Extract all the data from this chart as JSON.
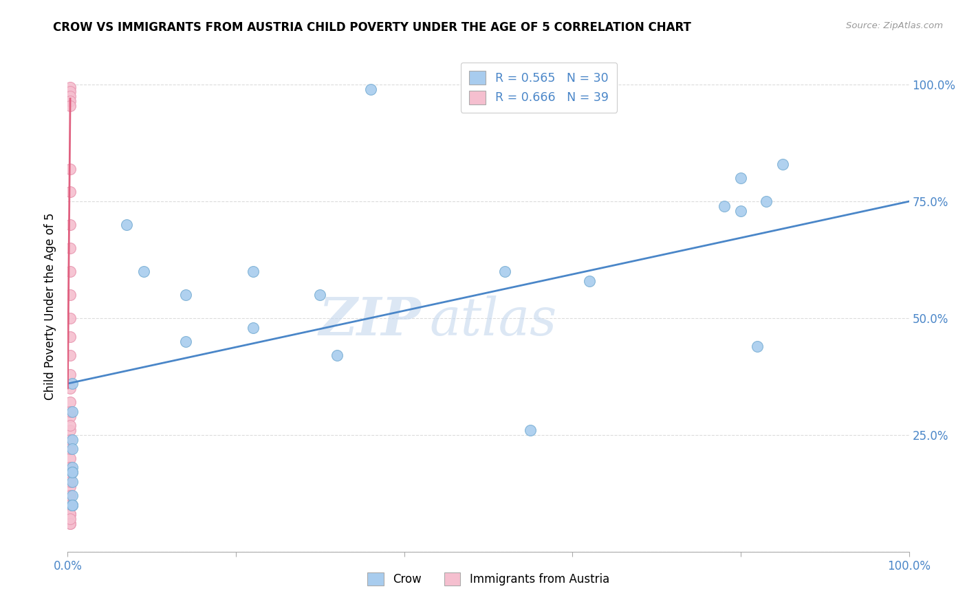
{
  "title": "CROW VS IMMIGRANTS FROM AUSTRIA CHILD POVERTY UNDER THE AGE OF 5 CORRELATION CHART",
  "source": "Source: ZipAtlas.com",
  "ylabel_label": "Child Poverty Under the Age of 5",
  "xlim": [
    0.0,
    1.0
  ],
  "ylim": [
    0.0,
    1.05
  ],
  "xtick_pos": [
    0.0,
    0.2,
    0.4,
    0.6,
    0.8,
    1.0
  ],
  "xticklabels": [
    "0.0%",
    "",
    "",
    "",
    "",
    "100.0%"
  ],
  "ytick_pos": [
    0.0,
    0.25,
    0.5,
    0.75,
    1.0
  ],
  "yticklabels_right": [
    "",
    "25.0%",
    "50.0%",
    "75.0%",
    "100.0%"
  ],
  "grid_color": "#cccccc",
  "background_color": "#ffffff",
  "crow_color": "#a8ccee",
  "crow_edge_color": "#7aafd4",
  "austria_color": "#f5bfcf",
  "austria_edge_color": "#e896b0",
  "crow_line_color": "#4a86c8",
  "austria_line_color": "#e06080",
  "crow_R": 0.565,
  "crow_N": 30,
  "austria_R": 0.666,
  "austria_N": 39,
  "legend_text_color": "#4a86c8",
  "watermark": "ZIPatlas",
  "crow_points_x": [
    0.005,
    0.07,
    0.09,
    0.14,
    0.14,
    0.22,
    0.22,
    0.3,
    0.32,
    0.36,
    0.52,
    0.55,
    0.62,
    0.78,
    0.8,
    0.8,
    0.82,
    0.83,
    0.85,
    0.005,
    0.005,
    0.005,
    0.005,
    0.005,
    0.005,
    0.005,
    0.005,
    0.005,
    0.005,
    0.005
  ],
  "crow_points_y": [
    0.36,
    0.7,
    0.6,
    0.55,
    0.45,
    0.6,
    0.48,
    0.55,
    0.42,
    0.99,
    0.6,
    0.26,
    0.58,
    0.74,
    0.8,
    0.73,
    0.44,
    0.75,
    0.83,
    0.3,
    0.24,
    0.22,
    0.18,
    0.15,
    0.12,
    0.1,
    0.17,
    0.17,
    0.1,
    0.1
  ],
  "austria_points_x": [
    0.003,
    0.003,
    0.003,
    0.003,
    0.003,
    0.003,
    0.003,
    0.003,
    0.003,
    0.003,
    0.003,
    0.003,
    0.003,
    0.003,
    0.003,
    0.003,
    0.003,
    0.003,
    0.003,
    0.003,
    0.003,
    0.003,
    0.003,
    0.003,
    0.003,
    0.003,
    0.003,
    0.003,
    0.003,
    0.003,
    0.003,
    0.003,
    0.003,
    0.003,
    0.003,
    0.003,
    0.003,
    0.003,
    0.003
  ],
  "austria_points_y": [
    0.995,
    0.985,
    0.975,
    0.965,
    0.955,
    0.82,
    0.77,
    0.7,
    0.65,
    0.6,
    0.55,
    0.5,
    0.46,
    0.42,
    0.38,
    0.35,
    0.32,
    0.29,
    0.26,
    0.24,
    0.22,
    0.2,
    0.18,
    0.16,
    0.14,
    0.12,
    0.1,
    0.08,
    0.3,
    0.27,
    0.22,
    0.18,
    0.15,
    0.12,
    0.1,
    0.08,
    0.06,
    0.06,
    0.07
  ],
  "crow_trend_x": [
    0.0,
    1.0
  ],
  "crow_trend_y": [
    0.36,
    0.75
  ],
  "austria_trend_x": [
    0.0,
    0.003
  ],
  "austria_trend_y": [
    0.35,
    0.97
  ]
}
